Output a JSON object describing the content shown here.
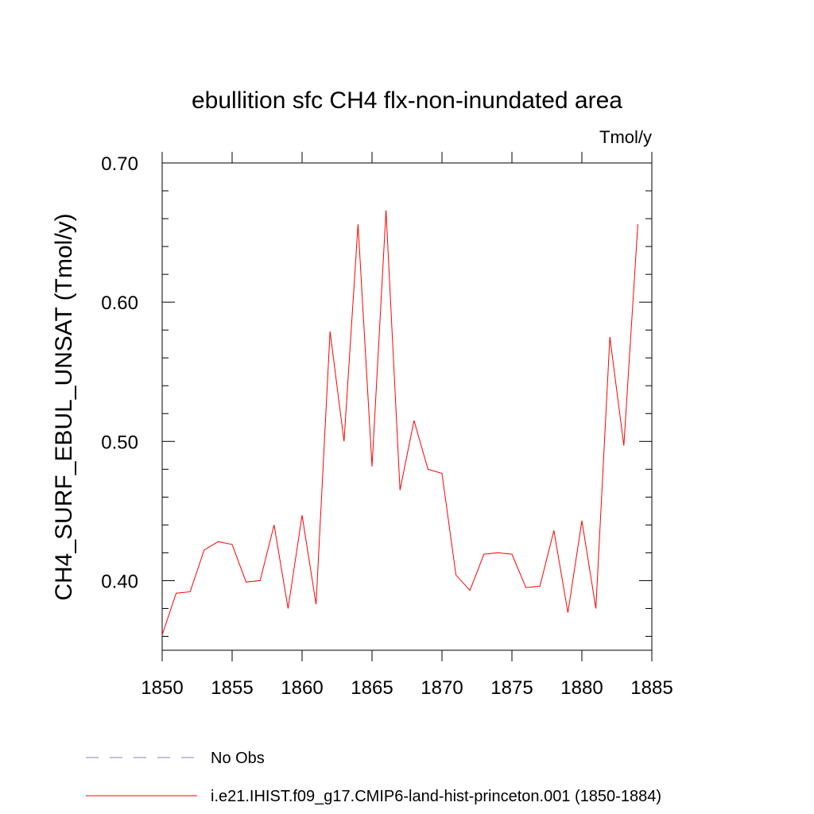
{
  "chart_data": {
    "type": "line",
    "title": "ebullition sfc CH4 flx-non-inundated area",
    "units_label": "Tmol/y",
    "ylabel": "CH4_SURF_EBUL_UNSAT  (Tmol/y)",
    "xlabel": "",
    "xlim": [
      1850,
      1885
    ],
    "ylim": [
      0.35,
      0.7
    ],
    "x_ticks": [
      1850,
      1855,
      1860,
      1865,
      1870,
      1875,
      1880,
      1885
    ],
    "x_tick_labels": [
      "1850",
      "1855",
      "1860",
      "1865",
      "1870",
      "1875",
      "1880",
      "1885"
    ],
    "y_ticks": [
      0.4,
      0.5,
      0.6,
      0.7
    ],
    "y_tick_labels": [
      "0.40",
      "0.50",
      "0.60",
      "0.70"
    ],
    "grid": false,
    "legend_position": "bottom",
    "series": [
      {
        "name": "i.e21.IHIST.f09_g17.CMIP6-land-hist-princeton.001 (1850-1884)",
        "color": "#ff0000",
        "dash": "solid",
        "x": [
          1850,
          1851,
          1852,
          1853,
          1854,
          1855,
          1856,
          1857,
          1858,
          1859,
          1860,
          1861,
          1862,
          1863,
          1864,
          1865,
          1866,
          1867,
          1868,
          1869,
          1870,
          1871,
          1872,
          1873,
          1874,
          1875,
          1876,
          1877,
          1878,
          1879,
          1880,
          1881,
          1882,
          1883,
          1884
        ],
        "y": [
          0.361,
          0.391,
          0.392,
          0.422,
          0.428,
          0.426,
          0.399,
          0.4,
          0.44,
          0.38,
          0.447,
          0.383,
          0.579,
          0.5,
          0.656,
          0.482,
          0.666,
          0.465,
          0.515,
          0.48,
          0.477,
          0.404,
          0.393,
          0.419,
          0.42,
          0.419,
          0.395,
          0.396,
          0.436,
          0.377,
          0.443,
          0.38,
          0.575,
          0.497,
          0.656
        ]
      }
    ],
    "legend": [
      {
        "label": "No Obs",
        "color": "#8080c0",
        "dash": "dashed"
      },
      {
        "label": "i.e21.IHIST.f09_g17.CMIP6-land-hist-princeton.001 (1850-1884)",
        "color": "#ff0000",
        "dash": "solid"
      }
    ]
  }
}
